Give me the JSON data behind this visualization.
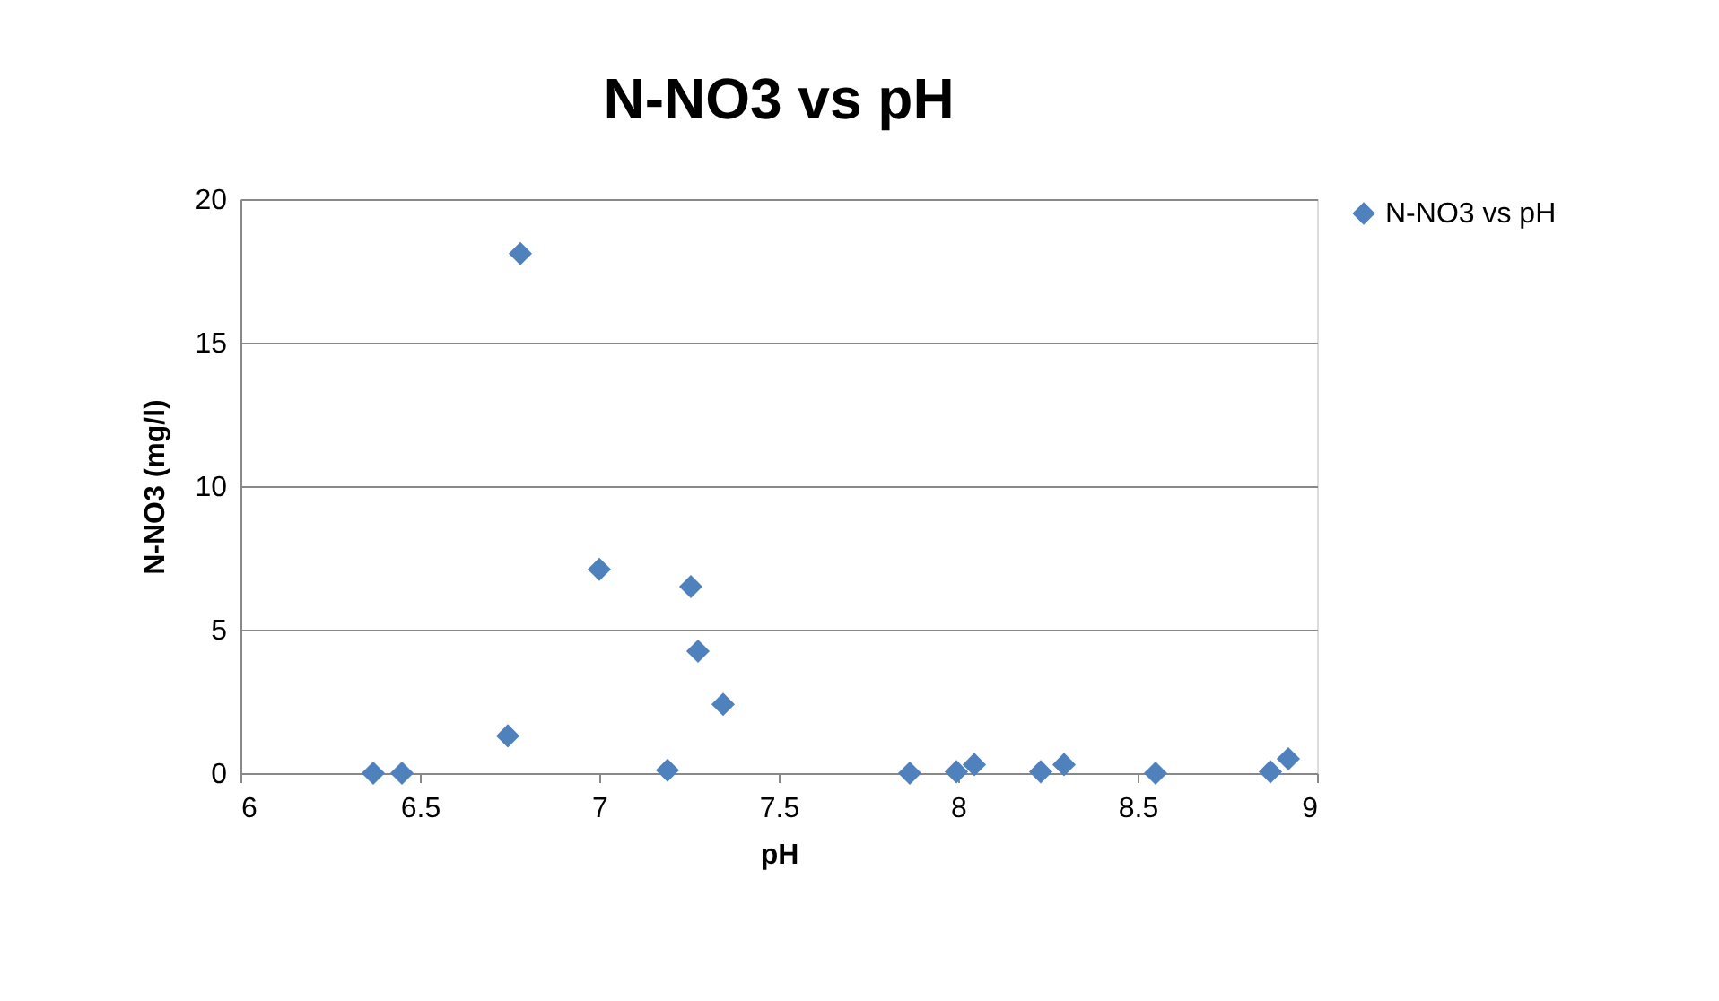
{
  "chart_data": {
    "type": "scatter",
    "title": "N-NO3 vs pH",
    "xlabel": "pH",
    "ylabel": "N-NO3 (mg/l)",
    "xlim": [
      6,
      9
    ],
    "xticks": [
      6,
      6.5,
      7,
      7.5,
      8,
      8.5,
      9
    ],
    "ylim": [
      0,
      20
    ],
    "yticks": [
      0,
      5,
      10,
      15,
      20
    ],
    "grid": "y",
    "legend": "right",
    "marker": "diamond",
    "series": [
      {
        "name": "N-NO3 vs pH",
        "color": "#4f81bd",
        "x": [
          6.37,
          6.45,
          6.745,
          6.78,
          7.0,
          7.19,
          7.255,
          7.275,
          7.345,
          7.865,
          7.995,
          8.045,
          8.23,
          8.295,
          8.55,
          8.87,
          8.92
        ],
        "values": [
          0,
          0,
          1.3,
          18.1,
          7.1,
          0.1,
          6.5,
          4.25,
          2.4,
          0,
          0.05,
          0.3,
          0.05,
          0.3,
          0,
          0.05,
          0.5
        ]
      }
    ]
  }
}
